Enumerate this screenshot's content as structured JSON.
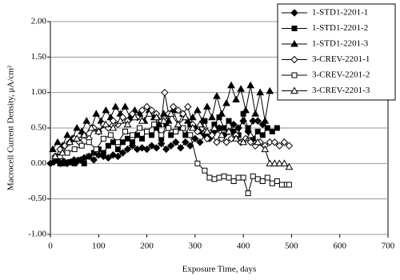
{
  "chart_data": {
    "type": "line",
    "x_label": "Exposure Time, days",
    "y_label": "Macrocell Current Density, μA/cm²",
    "xlim": [
      0,
      700
    ],
    "xticks": [
      0,
      100,
      200,
      300,
      400,
      500,
      600,
      700
    ],
    "ylim": [
      -1,
      2
    ],
    "yticks": [
      {
        "value": -1,
        "label": "-1.00"
      },
      {
        "value": -0.5,
        "label": "-0.50"
      },
      {
        "value": 0,
        "label": "0.00"
      },
      {
        "value": 0.5,
        "label": "0.50"
      },
      {
        "value": 1,
        "label": "1.00"
      },
      {
        "value": 1.5,
        "label": "1.50"
      },
      {
        "value": 2,
        "label": "2.00"
      }
    ],
    "grid": true,
    "legend": "top-right",
    "series": [
      {
        "name": "1-STD1-2201-1",
        "color": "#000000",
        "marker": "diamond",
        "filled": true,
        "x": [
          0,
          7,
          14,
          21,
          28,
          35,
          42,
          49,
          56,
          63,
          70,
          80,
          90,
          100,
          110,
          120,
          130,
          140,
          150,
          160,
          170,
          180,
          190,
          200,
          210,
          220,
          230,
          240,
          250,
          260,
          270,
          280,
          290,
          300,
          310,
          320,
          330,
          340,
          350,
          360,
          370,
          380,
          390,
          400,
          410,
          420,
          430,
          440
        ],
        "values": [
          0,
          0.02,
          0.05,
          0,
          0.03,
          0,
          0.02,
          0.05,
          0.03,
          0.05,
          0.08,
          0.1,
          0.05,
          0.12,
          0.1,
          0.08,
          0.12,
          0.1,
          0.15,
          0.2,
          0.25,
          0.2,
          0.22,
          0.2,
          0.25,
          0.22,
          0.28,
          0.2,
          0.25,
          0.3,
          0.22,
          0.3,
          0.25,
          0.35,
          0.3,
          0.4,
          0.35,
          0.45,
          0.5,
          0.4,
          0.45,
          0.55,
          0.5,
          0.6,
          0.45,
          0.6,
          0.6,
          0.55
        ]
      },
      {
        "name": "1-STD1-2201-2",
        "color": "#000000",
        "marker": "square",
        "filled": true,
        "x": [
          10,
          20,
          30,
          40,
          50,
          60,
          70,
          80,
          90,
          100,
          110,
          120,
          130,
          140,
          150,
          160,
          170,
          180,
          190,
          200,
          210,
          220,
          230,
          240,
          250,
          260,
          270,
          280,
          290,
          300,
          310,
          320,
          330,
          340,
          350,
          360,
          370,
          380,
          390,
          400,
          410,
          420,
          430,
          440,
          450,
          460,
          470
        ],
        "values": [
          0.05,
          0,
          0,
          0.02,
          0,
          0.05,
          0,
          0.1,
          0.15,
          0.2,
          0.15,
          0.25,
          0.3,
          0.2,
          0.3,
          0.35,
          0.3,
          0.4,
          0.35,
          0.45,
          0.4,
          0.5,
          0.35,
          0.55,
          0.4,
          0.45,
          0.5,
          0.4,
          0.55,
          0.5,
          0.45,
          0.6,
          0.4,
          0.55,
          0.65,
          0.5,
          0.6,
          0.45,
          0.4,
          0.7,
          0.5,
          0.35,
          0.45,
          0.4,
          0.5,
          0.45,
          0.5
        ]
      },
      {
        "name": "1-STD1-2201-3",
        "color": "#000000",
        "marker": "triangle",
        "filled": true,
        "x": [
          5,
          15,
          25,
          35,
          45,
          55,
          65,
          75,
          85,
          95,
          105,
          115,
          125,
          135,
          145,
          155,
          165,
          175,
          185,
          195,
          205,
          215,
          225,
          235,
          245,
          255,
          265,
          275,
          285,
          295,
          305,
          315,
          325,
          335,
          345,
          355,
          365,
          375,
          385,
          395,
          405,
          415,
          425,
          435,
          445,
          455
        ],
        "values": [
          0.2,
          0.3,
          0.25,
          0.4,
          0.35,
          0.5,
          0.45,
          0.6,
          0.5,
          0.7,
          0.6,
          0.75,
          0.65,
          0.8,
          0.7,
          0.8,
          0.65,
          0.75,
          0.7,
          0.6,
          0.75,
          0.65,
          0.55,
          0.7,
          0.6,
          0.75,
          0.55,
          0.7,
          0.6,
          0.65,
          0.75,
          0.6,
          0.8,
          0.65,
          0.95,
          0.7,
          0.85,
          1.1,
          0.9,
          1.05,
          0.75,
          1.1,
          0.7,
          1.0,
          0.6,
          1.02
        ]
      },
      {
        "name": "3-CREV-2201-1",
        "color": "#000000",
        "marker": "diamond",
        "filled": false,
        "x": [
          10,
          20,
          30,
          40,
          50,
          60,
          70,
          80,
          90,
          100,
          110,
          120,
          130,
          140,
          150,
          160,
          170,
          180,
          190,
          200,
          210,
          220,
          230,
          237,
          245,
          255,
          265,
          275,
          285,
          295,
          305,
          315,
          325,
          335,
          345,
          355,
          365,
          375,
          385,
          395,
          405,
          415,
          425,
          435,
          445,
          455,
          465,
          475,
          485,
          495
        ],
        "values": [
          0.1,
          0.2,
          0.25,
          0.3,
          0.35,
          0.3,
          0.4,
          0.35,
          0.5,
          0.45,
          0.55,
          0.5,
          0.6,
          0.55,
          0.65,
          0.6,
          0.7,
          0.65,
          0.75,
          0.8,
          0.75,
          0.7,
          0.6,
          1.0,
          0.7,
          0.8,
          0.75,
          0.7,
          0.8,
          0.55,
          0.45,
          0.5,
          0.35,
          0.4,
          0.3,
          0.35,
          0.3,
          0.35,
          0.4,
          0.3,
          0.35,
          0.3,
          0.25,
          0.3,
          0.25,
          0.3,
          0.3,
          0.25,
          0.3,
          0.25
        ]
      },
      {
        "name": "3-CREV-2201-2",
        "color": "#000000",
        "marker": "square",
        "filled": false,
        "x": [
          20,
          35,
          50,
          65,
          80,
          95,
          110,
          125,
          140,
          155,
          170,
          185,
          200,
          215,
          230,
          245,
          260,
          275,
          290,
          305,
          320,
          330,
          340,
          350,
          360,
          370,
          380,
          390,
          400,
          410,
          420,
          430,
          440,
          450,
          460,
          470,
          480,
          490,
          495
        ],
        "values": [
          0.1,
          0.15,
          0.2,
          0.25,
          0.3,
          0.2,
          0.35,
          0.4,
          0.3,
          0.45,
          0.4,
          0.5,
          0.45,
          0.55,
          0.4,
          0.5,
          0.45,
          0.5,
          0.4,
          0,
          -0.1,
          -0.2,
          -0.22,
          -0.2,
          -0.18,
          -0.2,
          -0.25,
          -0.2,
          -0.2,
          -0.42,
          -0.18,
          -0.22,
          -0.25,
          -0.2,
          -0.28,
          -0.25,
          -0.3,
          -0.3,
          -0.3
        ]
      },
      {
        "name": "3-CREV-2201-3",
        "color": "#000000",
        "marker": "triangle",
        "filled": false,
        "x": [
          10,
          25,
          40,
          55,
          70,
          85,
          100,
          115,
          130,
          145,
          160,
          175,
          190,
          205,
          220,
          235,
          250,
          265,
          280,
          295,
          310,
          325,
          340,
          355,
          370,
          385,
          400,
          415,
          430,
          445,
          455,
          465,
          475,
          485,
          495
        ],
        "values": [
          0.1,
          0.15,
          0.3,
          0.35,
          0.4,
          0.5,
          0.45,
          0.55,
          0.5,
          0.6,
          0.55,
          0.65,
          0.6,
          0.7,
          0.65,
          0.6,
          0.7,
          0.55,
          0.65,
          0.5,
          0.55,
          0.45,
          0.5,
          0.4,
          0.45,
          0.35,
          0.3,
          0.4,
          0.3,
          0.2,
          0,
          0,
          0,
          0,
          -0.05
        ]
      }
    ]
  }
}
